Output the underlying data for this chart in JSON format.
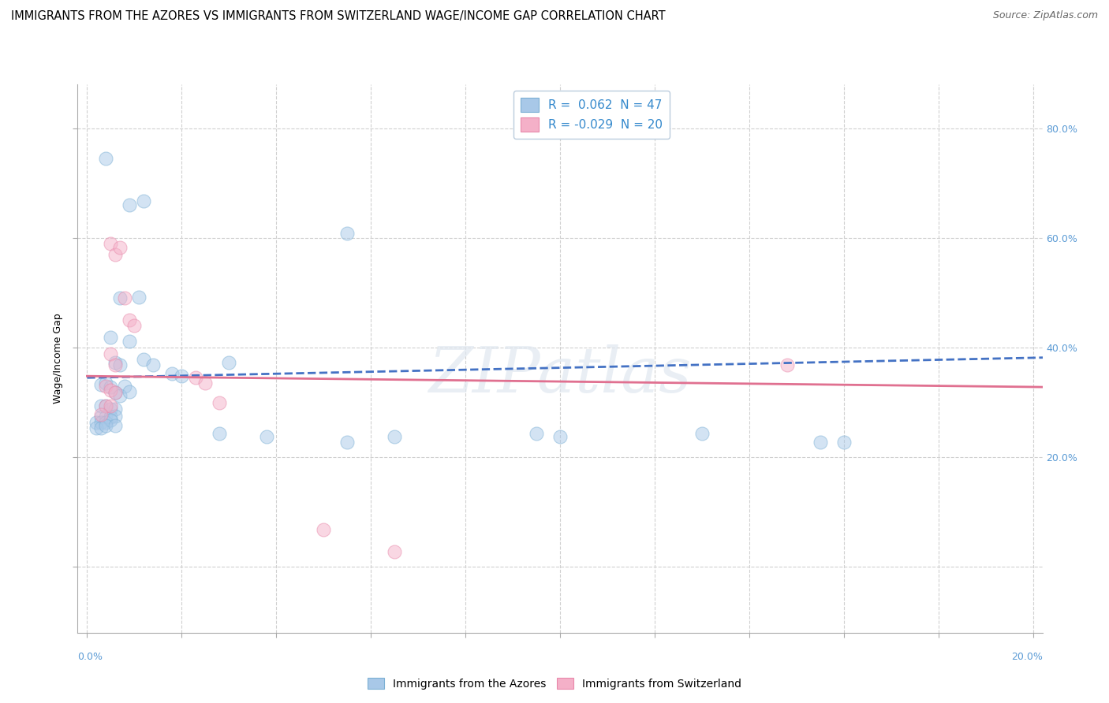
{
  "title": "IMMIGRANTS FROM THE AZORES VS IMMIGRANTS FROM SWITZERLAND WAGE/INCOME GAP CORRELATION CHART",
  "source_text": "Source: ZipAtlas.com",
  "ylabel": "Wage/Income Gap",
  "watermark": "ZIPatlas",
  "legend_entries": [
    {
      "label": "R =  0.062  N = 47",
      "color": "#a8c8e8"
    },
    {
      "label": "R = -0.029  N = 20",
      "color": "#f4b0c8"
    }
  ],
  "xlim": [
    -0.002,
    0.202
  ],
  "ylim": [
    -0.12,
    0.88
  ],
  "ytick_vals": [
    0.0,
    0.2,
    0.4,
    0.6,
    0.8
  ],
  "right_ytick_labels": [
    "",
    "20.0%",
    "40.0%",
    "60.0%",
    "80.0%"
  ],
  "right_ytick_color": "#5b9bd5",
  "blue_dots": [
    [
      0.004,
      0.745
    ],
    [
      0.009,
      0.66
    ],
    [
      0.012,
      0.668
    ],
    [
      0.007,
      0.49
    ],
    [
      0.011,
      0.492
    ],
    [
      0.005,
      0.418
    ],
    [
      0.009,
      0.412
    ],
    [
      0.006,
      0.372
    ],
    [
      0.007,
      0.368
    ],
    [
      0.012,
      0.378
    ],
    [
      0.014,
      0.368
    ],
    [
      0.003,
      0.332
    ],
    [
      0.004,
      0.335
    ],
    [
      0.005,
      0.328
    ],
    [
      0.006,
      0.318
    ],
    [
      0.008,
      0.33
    ],
    [
      0.007,
      0.313
    ],
    [
      0.009,
      0.32
    ],
    [
      0.003,
      0.293
    ],
    [
      0.004,
      0.293
    ],
    [
      0.005,
      0.288
    ],
    [
      0.006,
      0.288
    ],
    [
      0.003,
      0.273
    ],
    [
      0.004,
      0.273
    ],
    [
      0.005,
      0.273
    ],
    [
      0.006,
      0.275
    ],
    [
      0.002,
      0.263
    ],
    [
      0.003,
      0.263
    ],
    [
      0.004,
      0.263
    ],
    [
      0.005,
      0.268
    ],
    [
      0.002,
      0.253
    ],
    [
      0.003,
      0.253
    ],
    [
      0.004,
      0.258
    ],
    [
      0.018,
      0.353
    ],
    [
      0.02,
      0.348
    ],
    [
      0.03,
      0.373
    ],
    [
      0.028,
      0.243
    ],
    [
      0.038,
      0.238
    ],
    [
      0.055,
      0.608
    ],
    [
      0.055,
      0.228
    ],
    [
      0.065,
      0.238
    ],
    [
      0.095,
      0.243
    ],
    [
      0.1,
      0.238
    ],
    [
      0.13,
      0.243
    ],
    [
      0.155,
      0.228
    ],
    [
      0.16,
      0.228
    ],
    [
      0.006,
      0.258
    ]
  ],
  "pink_dots": [
    [
      0.005,
      0.59
    ],
    [
      0.006,
      0.57
    ],
    [
      0.007,
      0.582
    ],
    [
      0.008,
      0.49
    ],
    [
      0.009,
      0.45
    ],
    [
      0.01,
      0.44
    ],
    [
      0.005,
      0.388
    ],
    [
      0.006,
      0.368
    ],
    [
      0.004,
      0.33
    ],
    [
      0.005,
      0.323
    ],
    [
      0.006,
      0.318
    ],
    [
      0.004,
      0.293
    ],
    [
      0.005,
      0.293
    ],
    [
      0.003,
      0.278
    ],
    [
      0.023,
      0.345
    ],
    [
      0.025,
      0.335
    ],
    [
      0.028,
      0.3
    ],
    [
      0.05,
      0.068
    ],
    [
      0.065,
      0.028
    ],
    [
      0.148,
      0.368
    ]
  ],
  "blue_line_x": [
    0.0,
    0.55
  ],
  "blue_line_y": [
    0.345,
    0.445
  ],
  "pink_line_x": [
    0.0,
    0.202
  ],
  "pink_line_y": [
    0.348,
    0.328
  ],
  "blue_scatter_color": "#a8c8e8",
  "pink_scatter_color": "#f4b0c8",
  "blue_edge_color": "#7bafd4",
  "pink_edge_color": "#e888aa",
  "blue_line_color": "#4472c4",
  "pink_line_color": "#e07090",
  "dot_size": 150,
  "dot_alpha": 0.5,
  "grid_color": "#d0d0d0",
  "background_color": "#ffffff",
  "title_fontsize": 10.5,
  "axis_label_fontsize": 9,
  "tick_fontsize": 9,
  "source_fontsize": 9,
  "legend_text_color": "#3388cc",
  "xtick_positions": [
    0.0,
    0.02,
    0.04,
    0.06,
    0.08,
    0.1,
    0.12,
    0.14,
    0.16,
    0.18,
    0.2
  ]
}
